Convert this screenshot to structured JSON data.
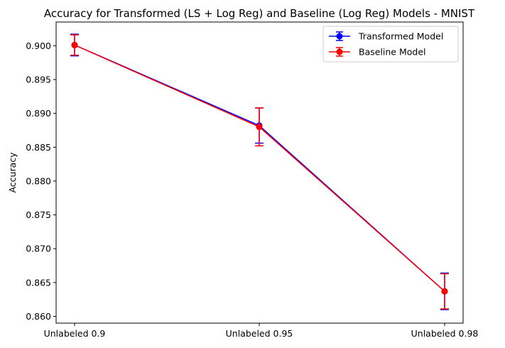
{
  "chart_data": {
    "type": "line",
    "title": "Accuracy for Transformed (LS + Log Reg) and Baseline (Log Reg) Models - MNIST",
    "xlabel": "",
    "ylabel": "Accuracy",
    "categories": [
      "Unlabeled 0.9",
      "Unlabeled 0.95",
      "Unlabeled 0.98"
    ],
    "ylim": [
      0.859,
      0.9035
    ],
    "yticks": [
      "0.860",
      "0.865",
      "0.870",
      "0.875",
      "0.880",
      "0.885",
      "0.890",
      "0.895",
      "0.900"
    ],
    "grid": false,
    "legend_position": "top-right",
    "series": [
      {
        "name": "Transformed Model",
        "color": "#0000ff",
        "values": [
          0.9001,
          0.8882,
          0.8637
        ],
        "errors": [
          0.0016,
          0.0026,
          0.0027
        ]
      },
      {
        "name": "Baseline Model",
        "color": "#ff0000",
        "values": [
          0.9001,
          0.888,
          0.8637
        ],
        "errors": [
          0.0015,
          0.0028,
          0.0026
        ]
      }
    ]
  }
}
